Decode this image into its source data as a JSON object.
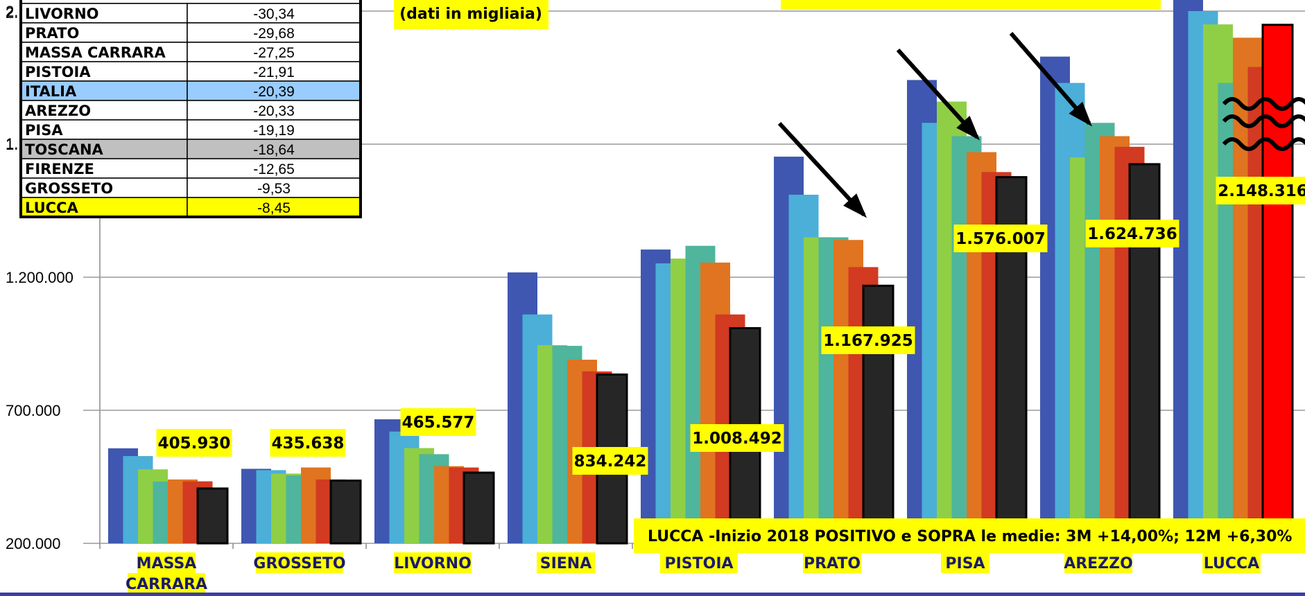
{
  "chart_data": {
    "type": "bar",
    "title": "",
    "xlabel": "",
    "ylabel": "",
    "ylim": [
      200000,
      2200000
    ],
    "y_ticks": [
      "200.000",
      "700.000",
      "1.200.000",
      "1.",
      "2."
    ],
    "grid": true,
    "categories": [
      "MASSA\nCARRARA",
      "GROSSETO",
      "LIVORNO",
      "SIENA",
      "PISTOIA",
      "PRATO",
      "PISA",
      "AREZZO",
      "LUCCA"
    ],
    "series": [
      {
        "values": [
          557000,
          480000,
          666000,
          1218000,
          1304000,
          1653000,
          1941000,
          2029000,
          2250000
        ],
        "color": "#3f57b0"
      },
      {
        "values": [
          528000,
          475000,
          620000,
          1060000,
          1252000,
          1510000,
          1780000,
          1930000,
          2200000
        ],
        "color": "#4bafd8"
      },
      {
        "values": [
          478000,
          462000,
          558000,
          945000,
          1270000,
          1350000,
          1860000,
          1650000,
          2150000
        ],
        "color": "#8fcf45"
      },
      {
        "values": [
          432000,
          455000,
          535000,
          942000,
          1318000,
          1350000,
          1730000,
          1780000,
          1930000
        ],
        "color": "#4fb59c"
      },
      {
        "values": [
          440000,
          485000,
          490000,
          890000,
          1255000,
          1340000,
          1670000,
          1730000,
          2100000
        ],
        "color": "#e07420"
      },
      {
        "values": [
          433000,
          440000,
          485000,
          846000,
          1060000,
          1238000,
          1595000,
          1690000,
          1990000
        ],
        "color": "#d23a22"
      },
      {
        "values": [
          405930,
          435638,
          465577,
          834242,
          1008492,
          1167925,
          1576007,
          1624736,
          2148316
        ],
        "color": "#262626"
      }
    ],
    "data_labels": [
      "405.930",
      "435.638",
      "465.577",
      "834.242",
      "1.008.492",
      "1.167.925",
      "1.576.007",
      "1.624.736",
      "2.148.316"
    ],
    "annotations": {
      "subtitle": "(dati in migliaia)",
      "headline": "LUCCA -Inizio 2018 POSITIVO  e SOPRA le medie: 3M +14,00%; 12M +6,30%"
    }
  },
  "table": {
    "rows": [
      {
        "name": "LIVORNO",
        "value": "-30,34",
        "fill": "#ffffff"
      },
      {
        "name": "PRATO",
        "value": "-29,68",
        "fill": "#ffffff"
      },
      {
        "name": "MASSA CARRARA",
        "value": "-27,25",
        "fill": "#ffffff"
      },
      {
        "name": "PISTOIA",
        "value": "-21,91",
        "fill": "#ffffff"
      },
      {
        "name": "ITALIA",
        "value": "-20,39",
        "fill": "#99ccff"
      },
      {
        "name": "AREZZO",
        "value": "-20,33",
        "fill": "#ffffff"
      },
      {
        "name": "PISA",
        "value": "-19,19",
        "fill": "#ffffff"
      },
      {
        "name": "TOSCANA",
        "value": "-18,64",
        "fill": "#c0c0c0"
      },
      {
        "name": "FIRENZE",
        "value": "-12,65",
        "fill": "#ffffff"
      },
      {
        "name": "GROSSETO",
        "value": "-9,53",
        "fill": "#ffffff"
      },
      {
        "name": "LUCCA",
        "value": "-8,45",
        "fill": "#ffff00"
      }
    ]
  },
  "colors": {
    "highlight": "#ffff00",
    "lucca_bar": "#ff0000",
    "grid": "#999999",
    "bottom_rule": "#3b3ea8"
  }
}
